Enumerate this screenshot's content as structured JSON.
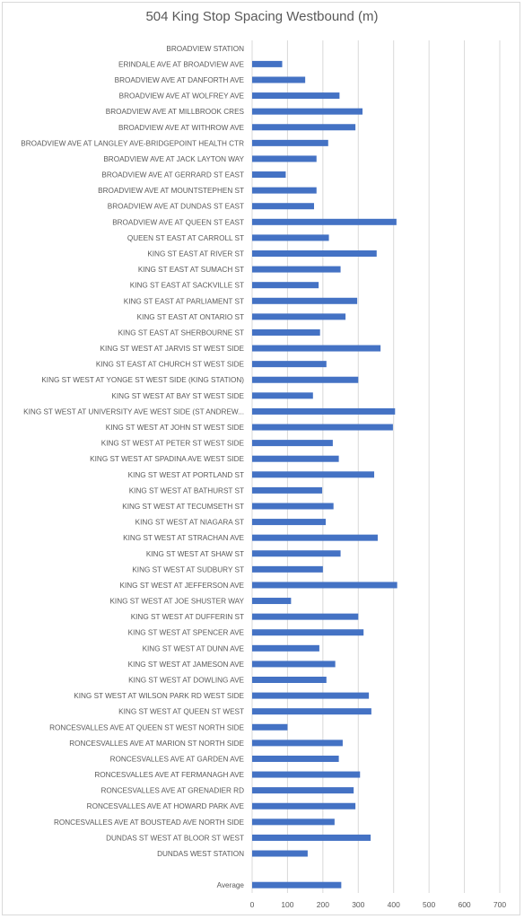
{
  "chart_data": {
    "type": "bar",
    "orientation": "horizontal",
    "title": "504 King Stop Spacing Westbound (m)",
    "xlabel": "",
    "ylabel": "",
    "xlim": [
      0,
      700
    ],
    "x_ticks": [
      0,
      100,
      200,
      300,
      400,
      500,
      600,
      700
    ],
    "grid": true,
    "legend": "none",
    "bar_color": "#4472c4",
    "categories": [
      "BROADVIEW STATION",
      "ERINDALE AVE AT BROADVIEW AVE",
      "BROADVIEW AVE AT DANFORTH AVE",
      "BROADVIEW AVE AT WOLFREY AVE",
      "BROADVIEW AVE AT MILLBROOK CRES",
      "BROADVIEW AVE AT WITHROW AVE",
      "BROADVIEW AVE AT LANGLEY AVE-BRIDGEPOINT HEALTH CTR",
      "BROADVIEW AVE AT JACK LAYTON WAY",
      "BROADVIEW AVE AT GERRARD ST EAST",
      "BROADVIEW AVE AT MOUNTSTEPHEN ST",
      "BROADVIEW AVE AT DUNDAS ST EAST",
      "BROADVIEW AVE AT QUEEN ST EAST",
      "QUEEN ST EAST AT CARROLL ST",
      "KING ST EAST AT RIVER ST",
      "KING ST EAST AT SUMACH ST",
      "KING ST EAST AT SACKVILLE ST",
      "KING ST EAST AT PARLIAMENT ST",
      "KING ST EAST AT ONTARIO ST",
      "KING ST EAST AT SHERBOURNE ST",
      "KING ST WEST AT JARVIS ST WEST SIDE",
      "KING ST EAST AT CHURCH ST WEST SIDE",
      "KING ST WEST AT YONGE ST WEST SIDE (KING STATION)",
      "KING ST WEST AT BAY ST WEST SIDE",
      "KING ST WEST AT UNIVERSITY AVE WEST SIDE (ST ANDREW...",
      "KING ST WEST AT JOHN ST WEST SIDE",
      "KING ST WEST AT PETER ST WEST SIDE",
      "KING ST WEST AT SPADINA AVE WEST SIDE",
      "KING ST WEST AT PORTLAND ST",
      "KING ST WEST AT BATHURST ST",
      "KING ST WEST AT TECUMSETH ST",
      "KING ST WEST AT NIAGARA ST",
      "KING ST WEST AT STRACHAN AVE",
      "KING ST WEST AT SHAW ST",
      "KING ST WEST AT SUDBURY ST",
      "KING ST WEST AT JEFFERSON AVE",
      "KING ST WEST AT JOE SHUSTER WAY",
      "KING ST WEST AT DUFFERIN ST",
      "KING ST WEST AT SPENCER AVE",
      "KING ST WEST AT DUNN AVE",
      "KING ST WEST AT JAMESON AVE",
      "KING ST WEST AT DOWLING AVE",
      "KING ST WEST AT WILSON PARK RD WEST SIDE",
      "KING ST WEST AT QUEEN ST WEST",
      "RONCESVALLES AVE AT QUEEN ST WEST NORTH SIDE",
      "RONCESVALLES AVE AT MARION ST NORTH SIDE",
      "RONCESVALLES AVE AT GARDEN AVE",
      "RONCESVALLES AVE AT FERMANAGH AVE",
      "RONCESVALLES AVE AT GRENADIER RD",
      "RONCESVALLES AVE AT HOWARD PARK AVE",
      "RONCESVALLES AVE AT BOUSTEAD AVE NORTH SIDE",
      "DUNDAS ST WEST AT BLOOR ST WEST",
      "DUNDAS WEST STATION",
      "",
      "Average"
    ],
    "values": [
      0,
      85,
      150,
      247,
      312,
      292,
      215,
      182,
      95,
      182,
      175,
      408,
      217,
      352,
      250,
      188,
      297,
      264,
      192,
      363,
      210,
      300,
      172,
      404,
      398,
      228,
      245,
      345,
      198,
      230,
      208,
      355,
      250,
      200,
      410,
      110,
      300,
      315,
      190,
      235,
      210,
      330,
      337,
      100,
      256,
      245,
      305,
      287,
      292,
      233,
      335,
      157,
      null,
      252
    ]
  }
}
